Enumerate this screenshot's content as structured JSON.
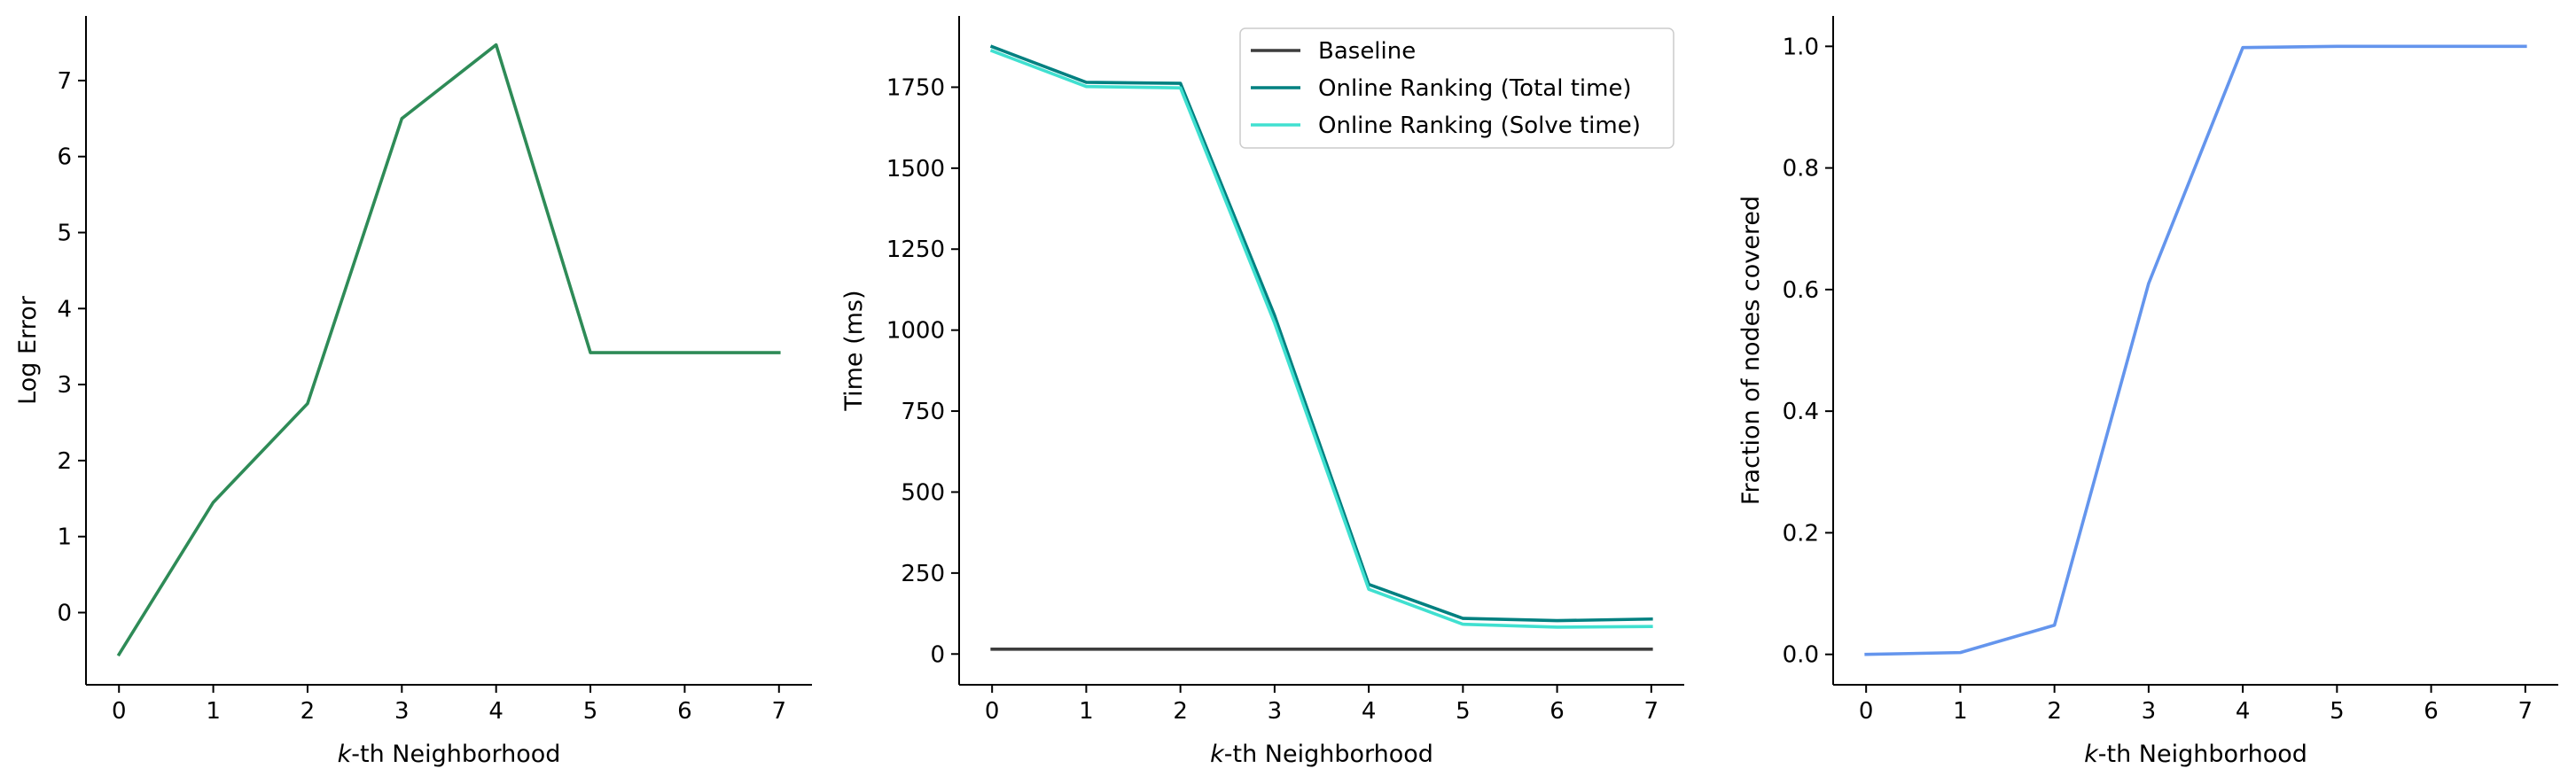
{
  "chart_data": [
    {
      "type": "line",
      "title": "",
      "xlabel_italic": "k",
      "xlabel_rest": "-th Neighborhood",
      "ylabel": "Log Error",
      "x": [
        0,
        1,
        2,
        3,
        4,
        5,
        6,
        7
      ],
      "xlim": [
        -0.35,
        7.35
      ],
      "ylim": [
        -0.95,
        7.85
      ],
      "xticks": [
        "0",
        "1",
        "2",
        "3",
        "4",
        "5",
        "6",
        "7"
      ],
      "yticks": [
        0,
        1,
        2,
        3,
        4,
        5,
        6,
        7
      ],
      "ytick_labels": [
        "0",
        "1",
        "2",
        "3",
        "4",
        "5",
        "6",
        "7"
      ],
      "grid": false,
      "series": [
        {
          "values": [
            -0.55,
            1.45,
            2.75,
            6.5,
            7.47,
            3.42,
            3.42,
            3.42
          ],
          "color": "#2e8b57"
        }
      ]
    },
    {
      "type": "line",
      "title": "",
      "xlabel_italic": "k",
      "xlabel_rest": "-th Neighborhood",
      "ylabel": "Time (ms)",
      "x": [
        0,
        1,
        2,
        3,
        4,
        5,
        6,
        7
      ],
      "xlim": [
        -0.35,
        7.35
      ],
      "ylim": [
        -95,
        1970
      ],
      "xticks": [
        "0",
        "1",
        "2",
        "3",
        "4",
        "5",
        "6",
        "7"
      ],
      "yticks": [
        0,
        250,
        500,
        750,
        1000,
        1250,
        1500,
        1750
      ],
      "ytick_labels": [
        "0",
        "250",
        "500",
        "750",
        "1000",
        "1250",
        "1500",
        "1750"
      ],
      "grid": false,
      "legend_position": "top-right",
      "series": [
        {
          "name": "Baseline",
          "values": [
            15,
            15,
            15,
            15,
            15,
            15,
            15,
            15
          ],
          "color": "#3d3d3d"
        },
        {
          "name": "Online Ranking (Total time)",
          "values": [
            1875,
            1765,
            1762,
            1045,
            215,
            110,
            103,
            108
          ],
          "color": "#008080"
        },
        {
          "name": "Online Ranking (Solve time)",
          "values": [
            1862,
            1752,
            1748,
            1022,
            200,
            92,
            83,
            85
          ],
          "color": "#40e0d0"
        }
      ]
    },
    {
      "type": "line",
      "title": "",
      "xlabel_italic": "k",
      "xlabel_rest": "-th Neighborhood",
      "ylabel": "Fraction of nodes covered",
      "x": [
        0,
        1,
        2,
        3,
        4,
        5,
        6,
        7
      ],
      "xlim": [
        -0.35,
        7.35
      ],
      "ylim": [
        -0.05,
        1.05
      ],
      "xticks": [
        "0",
        "1",
        "2",
        "3",
        "4",
        "5",
        "6",
        "7"
      ],
      "yticks": [
        0.0,
        0.2,
        0.4,
        0.6,
        0.8,
        1.0
      ],
      "ytick_labels": [
        "0.0",
        "0.2",
        "0.4",
        "0.6",
        "0.8",
        "1.0"
      ],
      "grid": false,
      "series": [
        {
          "values": [
            0.0,
            0.003,
            0.048,
            0.61,
            0.998,
            1.0,
            1.0,
            1.0
          ],
          "color": "#6495ed"
        }
      ]
    }
  ]
}
